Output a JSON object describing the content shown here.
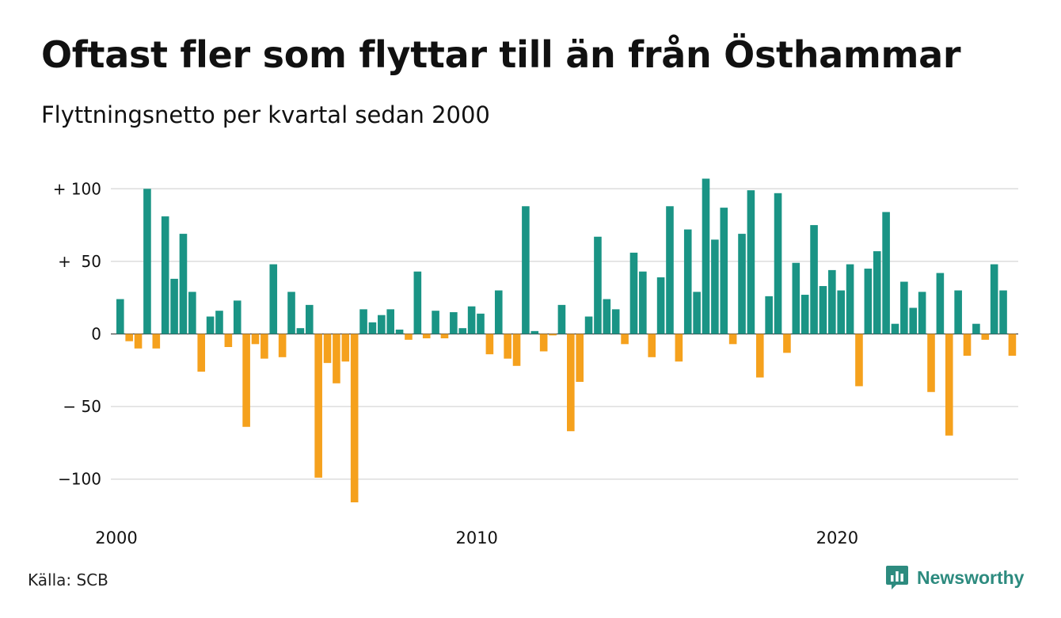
{
  "title": "Oftast fler som flyttar till än från Östhammar",
  "subtitle": "Flyttningsnetto per kvartal sedan 2000",
  "source": "Källa: SCB",
  "brand": {
    "name": "Newsworthy",
    "icon": "newsworthy-logo-icon"
  },
  "colors": {
    "positive": "#1a9485",
    "negative": "#f5a11d",
    "grid": "#dddddd"
  },
  "chart_data": {
    "type": "bar",
    "x_start": "2000 Q1",
    "x_tick_labels": [
      "2000",
      "2010",
      "2020"
    ],
    "y_tick_labels": [
      "+ 100",
      "+  50",
      "0",
      "− 50",
      "−100"
    ],
    "y_ticks": [
      100,
      50,
      0,
      -50,
      -100
    ],
    "ylim": [
      -120,
      110
    ],
    "grid": true,
    "values": [
      24,
      -5,
      -10,
      100,
      -10,
      81,
      38,
      69,
      29,
      -26,
      12,
      16,
      -9,
      23,
      -64,
      -7,
      -17,
      48,
      -16,
      29,
      4,
      20,
      -99,
      -20,
      -34,
      -19,
      -116,
      17,
      8,
      13,
      17,
      3,
      -4,
      43,
      -3,
      16,
      -3,
      15,
      4,
      19,
      14,
      -14,
      30,
      -17,
      -22,
      88,
      2,
      -12,
      -1,
      20,
      -67,
      -33,
      12,
      67,
      24,
      17,
      -7,
      56,
      43,
      -16,
      39,
      88,
      -19,
      72,
      29,
      107,
      65,
      87,
      -7,
      69,
      99,
      -30,
      26,
      97,
      -13,
      49,
      27,
      75,
      33,
      44,
      30,
      48,
      -36,
      45,
      57,
      84,
      7,
      36,
      18,
      29,
      -40,
      42,
      -70,
      30,
      -15,
      7,
      -4,
      48,
      30,
      -15
    ]
  }
}
